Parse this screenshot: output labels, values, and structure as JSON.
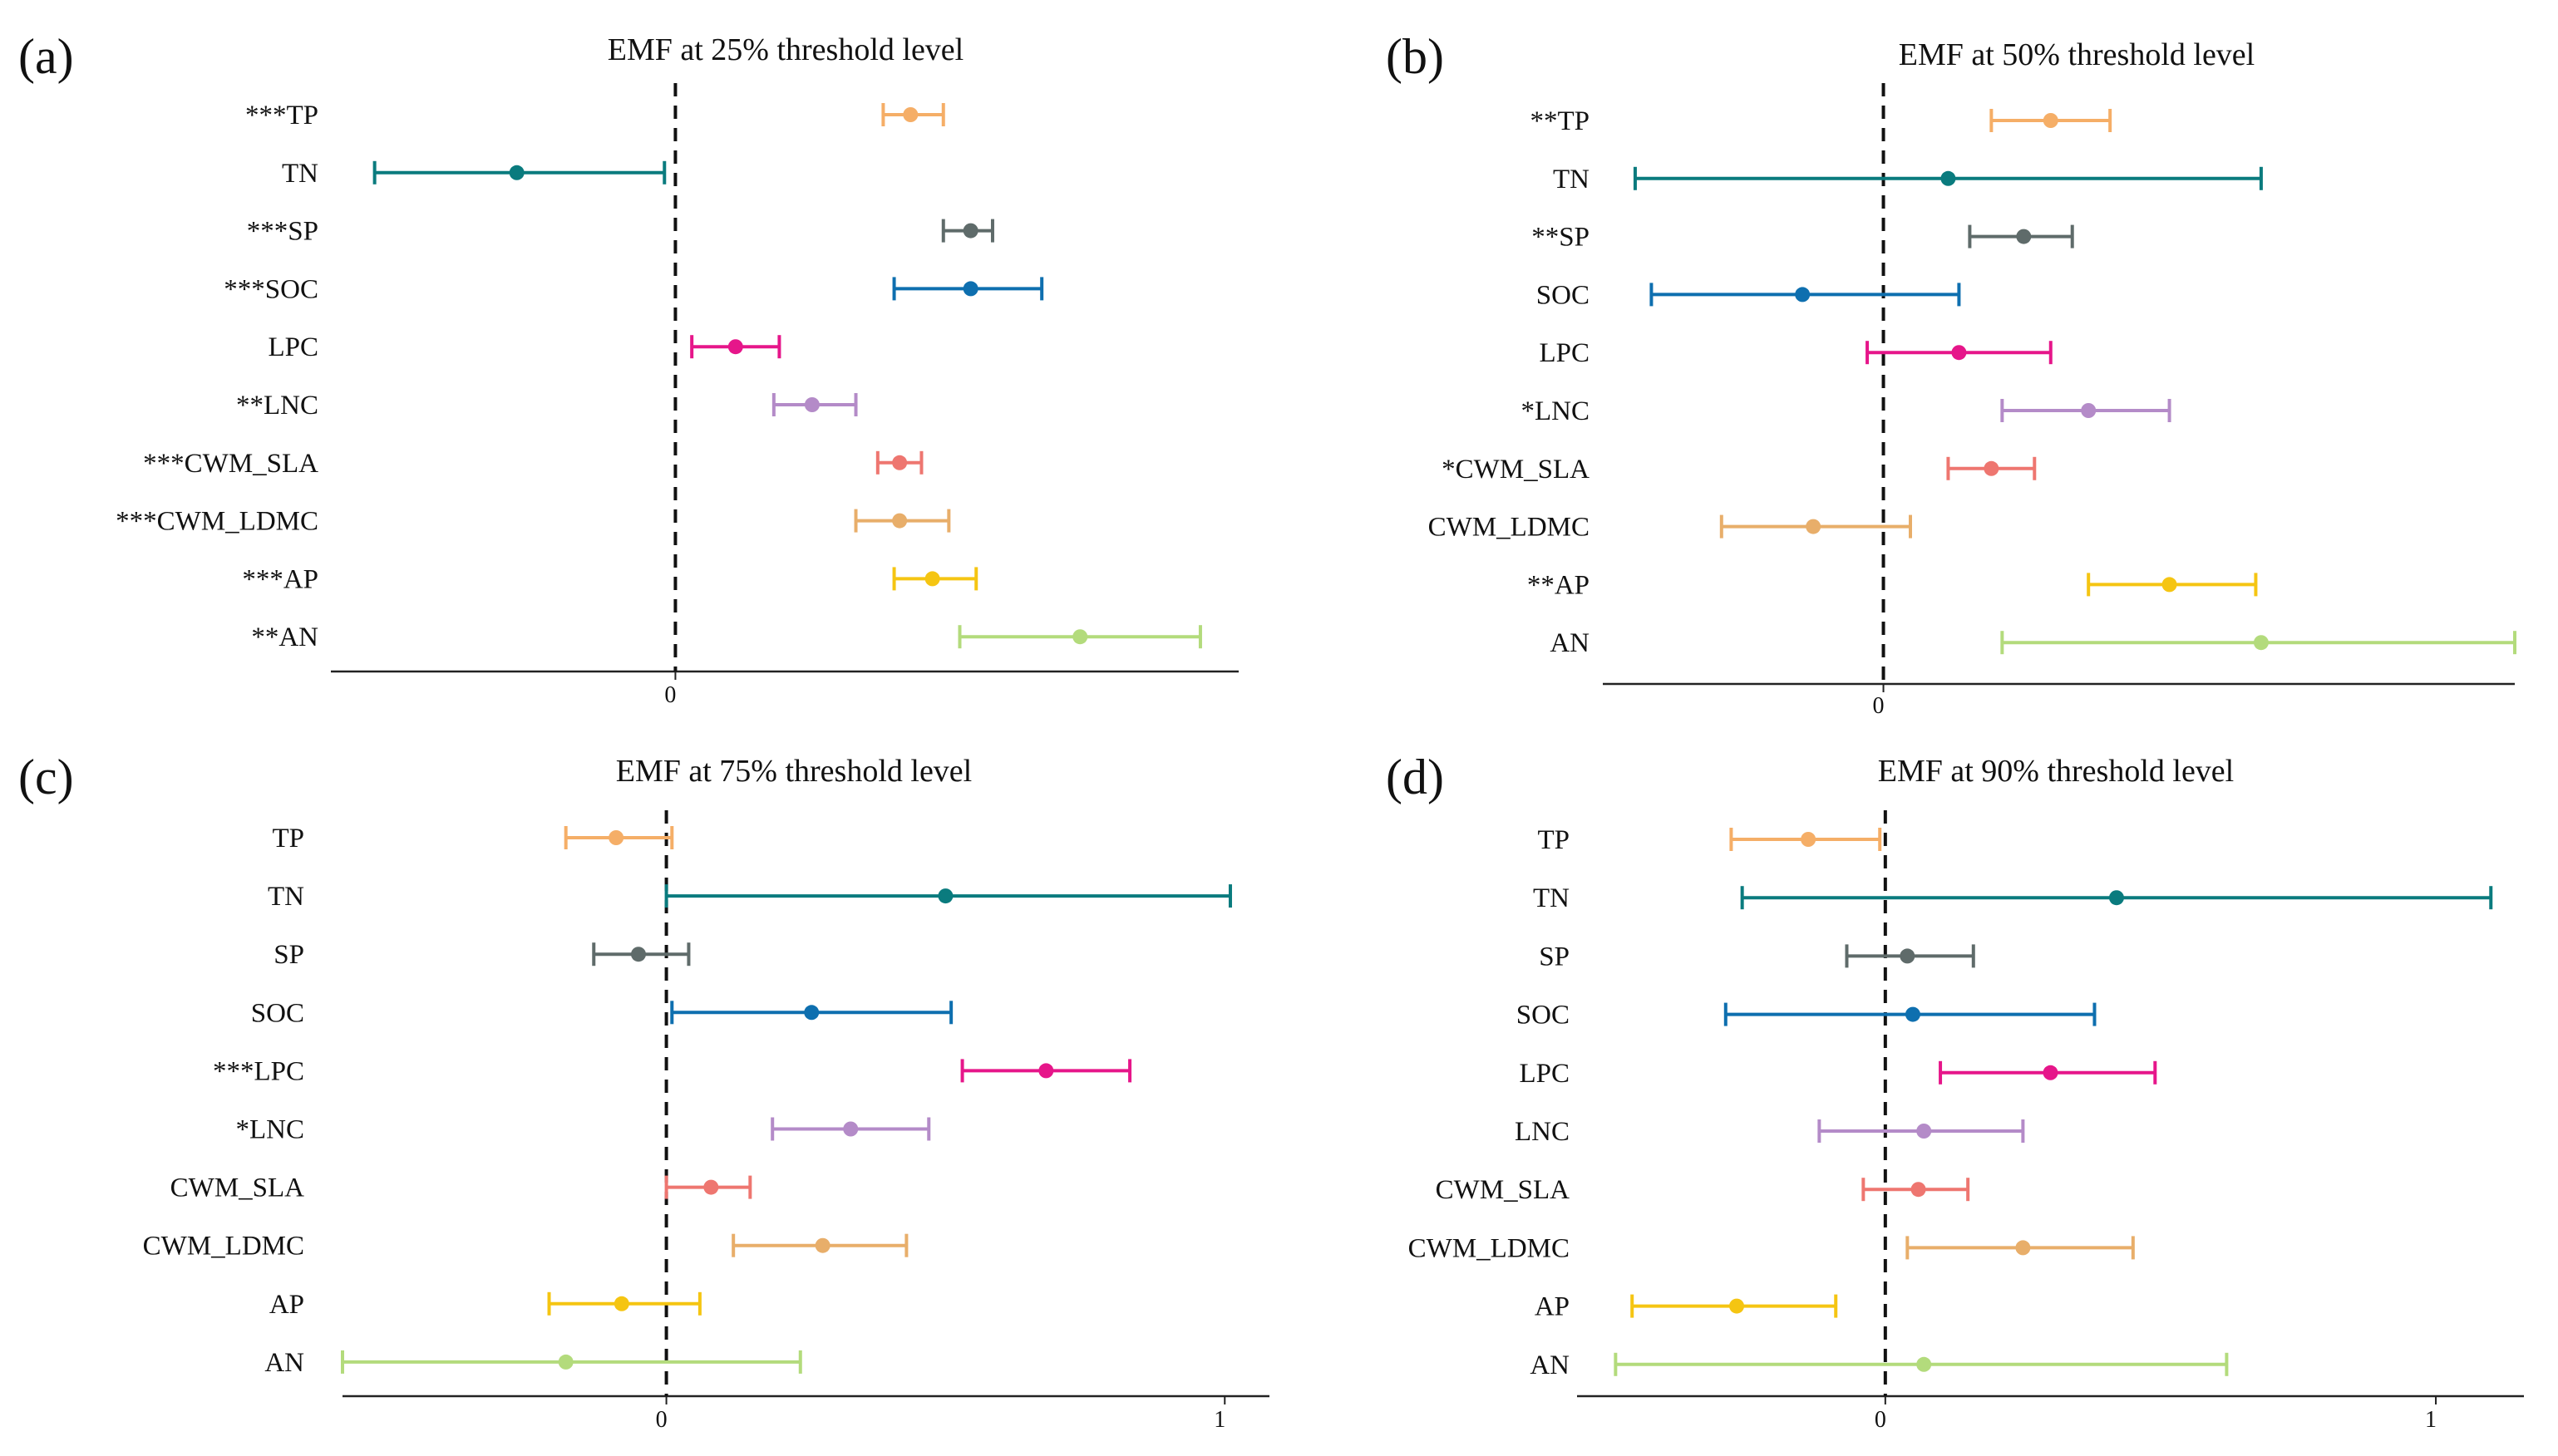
{
  "chart_data": [
    {
      "type": "forest",
      "panel_label": "(a)",
      "title": "EMF at 25% threshold level",
      "xlim": [
        -0.63,
        1.03
      ],
      "xticks": [
        0
      ],
      "xtick_labels": [
        "0"
      ],
      "reference_line": 0,
      "rows": [
        {
          "label": "***TP",
          "var": "TP",
          "sig": "***",
          "color": "#F5AE67",
          "mean": 0.43,
          "lower": 0.38,
          "upper": 0.49
        },
        {
          "label": "TN",
          "var": "TN",
          "sig": "",
          "color": "#0A7B7E",
          "mean": -0.29,
          "lower": -0.55,
          "upper": -0.02
        },
        {
          "label": "***SP",
          "var": "SP",
          "sig": "***",
          "color": "#5F6B6A",
          "mean": 0.54,
          "lower": 0.49,
          "upper": 0.58
        },
        {
          "label": "***SOC",
          "var": "SOC",
          "sig": "***",
          "color": "#0E6FAF",
          "mean": 0.54,
          "lower": 0.4,
          "upper": 0.67
        },
        {
          "label": "LPC",
          "var": "LPC",
          "sig": "",
          "color": "#E6168A",
          "mean": 0.11,
          "lower": 0.03,
          "upper": 0.19
        },
        {
          "label": "**LNC",
          "var": "LNC",
          "sig": "**",
          "color": "#B48BC8",
          "mean": 0.25,
          "lower": 0.18,
          "upper": 0.33
        },
        {
          "label": "***CWM_SLA",
          "var": "CWM_SLA",
          "sig": "***",
          "color": "#EE7670",
          "mean": 0.41,
          "lower": 0.37,
          "upper": 0.45
        },
        {
          "label": "***CWM_LDMC",
          "var": "CWM_LDMC",
          "sig": "***",
          "color": "#E8AE6A",
          "mean": 0.41,
          "lower": 0.33,
          "upper": 0.5
        },
        {
          "label": "***AP",
          "var": "AP",
          "sig": "***",
          "color": "#F5C512",
          "mean": 0.47,
          "lower": 0.4,
          "upper": 0.55
        },
        {
          "label": "**AN",
          "var": "AN",
          "sig": "**",
          "color": "#B3DB7C",
          "mean": 0.74,
          "lower": 0.52,
          "upper": 0.96
        }
      ]
    },
    {
      "type": "forest",
      "panel_label": "(b)",
      "title": "EMF at 50% threshold level",
      "xlim": [
        -0.52,
        1.17
      ],
      "xticks": [
        0
      ],
      "xtick_labels": [
        "0"
      ],
      "reference_line": 0,
      "rows": [
        {
          "label": "**TP",
          "var": "TP",
          "sig": "**",
          "color": "#F5AE67",
          "mean": 0.31,
          "lower": 0.2,
          "upper": 0.42
        },
        {
          "label": "TN",
          "var": "TN",
          "sig": "",
          "color": "#0A7B7E",
          "mean": 0.12,
          "lower": -0.46,
          "upper": 0.7
        },
        {
          "label": "**SP",
          "var": "SP",
          "sig": "**",
          "color": "#5F6B6A",
          "mean": 0.26,
          "lower": 0.16,
          "upper": 0.35
        },
        {
          "label": "SOC",
          "var": "SOC",
          "sig": "",
          "color": "#0E6FAF",
          "mean": -0.15,
          "lower": -0.43,
          "upper": 0.14
        },
        {
          "label": "LPC",
          "var": "LPC",
          "sig": "",
          "color": "#E6168A",
          "mean": 0.14,
          "lower": -0.03,
          "upper": 0.31
        },
        {
          "label": "*LNC",
          "var": "LNC",
          "sig": "*",
          "color": "#B48BC8",
          "mean": 0.38,
          "lower": 0.22,
          "upper": 0.53
        },
        {
          "label": "*CWM_SLA",
          "var": "CWM_SLA",
          "sig": "*",
          "color": "#EE7670",
          "mean": 0.2,
          "lower": 0.12,
          "upper": 0.28
        },
        {
          "label": "CWM_LDMC",
          "var": "CWM_LDMC",
          "sig": "",
          "color": "#E8AE6A",
          "mean": -0.13,
          "lower": -0.3,
          "upper": 0.05
        },
        {
          "label": "**AP",
          "var": "AP",
          "sig": "**",
          "color": "#F5C512",
          "mean": 0.53,
          "lower": 0.38,
          "upper": 0.69
        },
        {
          "label": "AN",
          "var": "AN",
          "sig": "",
          "color": "#B3DB7C",
          "mean": 0.7,
          "lower": 0.22,
          "upper": 1.17
        }
      ]
    },
    {
      "type": "forest",
      "panel_label": "(c)",
      "title": "EMF at 75% threshold level",
      "xlim": [
        -0.58,
        1.08
      ],
      "xticks": [
        0,
        1
      ],
      "xtick_labels": [
        "0",
        "1"
      ],
      "reference_line": 0,
      "rows": [
        {
          "label": "TP",
          "var": "TP",
          "sig": "",
          "color": "#F5AE67",
          "mean": -0.09,
          "lower": -0.18,
          "upper": 0.01
        },
        {
          "label": "TN",
          "var": "TN",
          "sig": "",
          "color": "#0A7B7E",
          "mean": 0.5,
          "lower": 0.0,
          "upper": 1.01
        },
        {
          "label": "SP",
          "var": "SP",
          "sig": "",
          "color": "#5F6B6A",
          "mean": -0.05,
          "lower": -0.13,
          "upper": 0.04
        },
        {
          "label": "SOC",
          "var": "SOC",
          "sig": "",
          "color": "#0E6FAF",
          "mean": 0.26,
          "lower": 0.01,
          "upper": 0.51
        },
        {
          "label": "***LPC",
          "var": "LPC",
          "sig": "***",
          "color": "#E6168A",
          "mean": 0.68,
          "lower": 0.53,
          "upper": 0.83
        },
        {
          "label": "*LNC",
          "var": "LNC",
          "sig": "*",
          "color": "#B48BC8",
          "mean": 0.33,
          "lower": 0.19,
          "upper": 0.47
        },
        {
          "label": "CWM_SLA",
          "var": "CWM_SLA",
          "sig": "",
          "color": "#EE7670",
          "mean": 0.08,
          "lower": 0.0,
          "upper": 0.15
        },
        {
          "label": "CWM_LDMC",
          "var": "CWM_LDMC",
          "sig": "",
          "color": "#E8AE6A",
          "mean": 0.28,
          "lower": 0.12,
          "upper": 0.43
        },
        {
          "label": "AP",
          "var": "AP",
          "sig": "",
          "color": "#F5C512",
          "mean": -0.08,
          "lower": -0.21,
          "upper": 0.06
        },
        {
          "label": "AN",
          "var": "AN",
          "sig": "",
          "color": "#B3DB7C",
          "mean": -0.18,
          "lower": -0.58,
          "upper": 0.24
        }
      ]
    },
    {
      "type": "forest",
      "panel_label": "(d)",
      "title": "EMF at 90% threshold level",
      "xlim": [
        -0.56,
        1.16
      ],
      "xticks": [
        0,
        1
      ],
      "xtick_labels": [
        "0",
        "1"
      ],
      "reference_line": 0,
      "rows": [
        {
          "label": "TP",
          "var": "TP",
          "sig": "",
          "color": "#F5AE67",
          "mean": -0.14,
          "lower": -0.28,
          "upper": -0.01
        },
        {
          "label": "TN",
          "var": "TN",
          "sig": "",
          "color": "#0A7B7E",
          "mean": 0.42,
          "lower": -0.26,
          "upper": 1.1
        },
        {
          "label": "SP",
          "var": "SP",
          "sig": "",
          "color": "#5F6B6A",
          "mean": 0.04,
          "lower": -0.07,
          "upper": 0.16
        },
        {
          "label": "SOC",
          "var": "SOC",
          "sig": "",
          "color": "#0E6FAF",
          "mean": 0.05,
          "lower": -0.29,
          "upper": 0.38
        },
        {
          "label": "LPC",
          "var": "LPC",
          "sig": "",
          "color": "#E6168A",
          "mean": 0.3,
          "lower": 0.1,
          "upper": 0.49
        },
        {
          "label": "LNC",
          "var": "LNC",
          "sig": "",
          "color": "#B48BC8",
          "mean": 0.07,
          "lower": -0.12,
          "upper": 0.25
        },
        {
          "label": "CWM_SLA",
          "var": "CWM_SLA",
          "sig": "",
          "color": "#EE7670",
          "mean": 0.06,
          "lower": -0.04,
          "upper": 0.15
        },
        {
          "label": "CWM_LDMC",
          "var": "CWM_LDMC",
          "sig": "",
          "color": "#E8AE6A",
          "mean": 0.25,
          "lower": 0.04,
          "upper": 0.45
        },
        {
          "label": "AP",
          "var": "AP",
          "sig": "",
          "color": "#F5C512",
          "mean": -0.27,
          "lower": -0.46,
          "upper": -0.09
        },
        {
          "label": "AN",
          "var": "AN",
          "sig": "",
          "color": "#B3DB7C",
          "mean": 0.07,
          "lower": -0.49,
          "upper": 0.62
        }
      ]
    }
  ]
}
